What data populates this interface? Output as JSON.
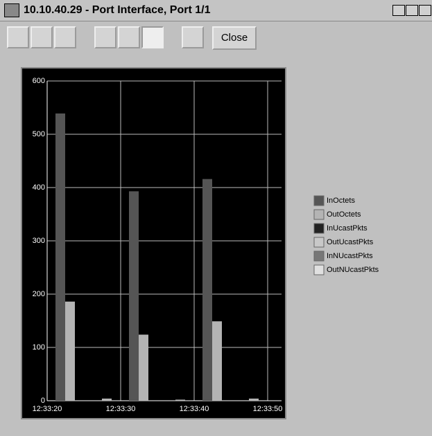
{
  "window": {
    "title": "10.10.40.29 - Port Interface, Port 1/1",
    "close_button": "Close"
  },
  "chart_data": {
    "type": "bar",
    "xticks": [
      "12:33:20",
      "12:33:30",
      "12:33:40",
      "12:33:50"
    ],
    "series": [
      {
        "name": "InOctets",
        "color": "#555555",
        "values": [
          539,
          0,
          393,
          0,
          416,
          0
        ]
      },
      {
        "name": "OutOctets",
        "color": "#b4b4b4",
        "values": [
          186,
          4,
          124,
          2,
          149,
          4
        ]
      },
      {
        "name": "InUcastPkts",
        "color": "#222222",
        "values": [
          0,
          0,
          0,
          0,
          0,
          0
        ]
      },
      {
        "name": "OutUcastPkts",
        "color": "#c8c8c8",
        "values": [
          0,
          0,
          0,
          0,
          0,
          0
        ]
      },
      {
        "name": "InNUcastPkts",
        "color": "#777777",
        "values": [
          0,
          0,
          0,
          0,
          0,
          0
        ]
      },
      {
        "name": "OutNUcastPkts",
        "color": "#e0e0e0",
        "values": [
          0,
          0,
          0,
          0,
          0,
          0
        ]
      }
    ],
    "ylim": [
      0,
      600
    ],
    "yticks": [
      0,
      100,
      200,
      300,
      400,
      500,
      600
    ],
    "grid": true,
    "legend": "right"
  }
}
